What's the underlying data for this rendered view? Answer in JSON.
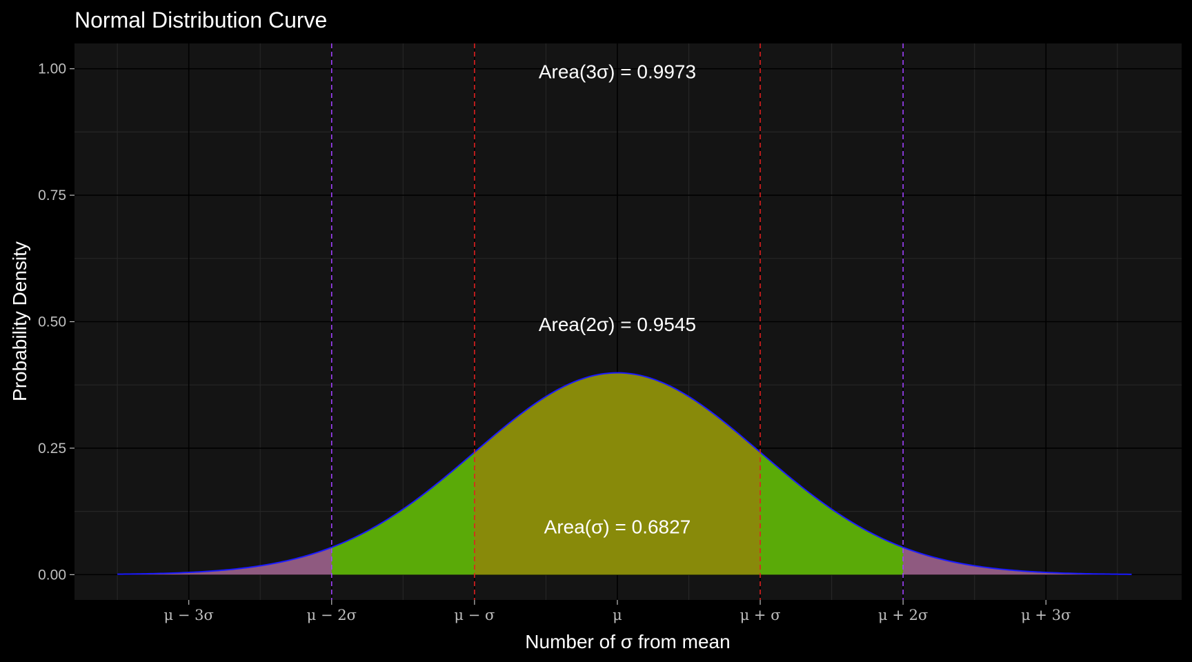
{
  "chart_data": {
    "type": "area",
    "title": "Normal Distribution Curve",
    "xlabel": "Number of σ from mean",
    "ylabel": "Probability Density",
    "xlim": [
      -3.8,
      3.95
    ],
    "ylim": [
      -0.05,
      1.05
    ],
    "y_ticks": [
      0,
      0.25,
      0.5,
      0.75,
      1
    ],
    "y_tick_labels": [
      "0.00",
      "0.25",
      "0.50",
      "0.75",
      "1.00"
    ],
    "x_ticks": [
      -3,
      -2,
      -1,
      0,
      1,
      2,
      3
    ],
    "x_tick_labels": [
      "μ − 3σ",
      "μ − 2σ",
      "μ − σ",
      "μ",
      "μ + σ",
      "μ + 2σ",
      "μ + 3σ"
    ],
    "curve": {
      "distribution": "standard normal density",
      "x_range": [
        -3.5,
        3.6
      ],
      "peak": {
        "x": 0,
        "y": 0.4
      },
      "color": "#1a1aff"
    },
    "regions": [
      {
        "name": "within 1σ",
        "from": -1,
        "to": 1,
        "color": "#888a0a"
      },
      {
        "name": "within 2σ",
        "from": -2,
        "to": 2,
        "color": "#5aaa08"
      },
      {
        "name": "beyond 2σ",
        "from": -3.5,
        "to": 3.6,
        "color": "#8f5a80"
      }
    ],
    "reference_lines": [
      {
        "x": -2,
        "color": "#a040ff",
        "style": "dashed"
      },
      {
        "x": -1,
        "color": "#e02020",
        "style": "dashed"
      },
      {
        "x": 1,
        "color": "#e02020",
        "style": "dashed"
      },
      {
        "x": 2,
        "color": "#a040ff",
        "style": "dashed"
      }
    ],
    "annotations": [
      {
        "text": "Area(3σ) = 0.9973",
        "x": 0,
        "y": 0.995
      },
      {
        "text": "Area(2σ) = 0.9545",
        "x": 0,
        "y": 0.495
      },
      {
        "text": "Area(σ) = 0.6827",
        "x": 0,
        "y": 0.095
      }
    ],
    "grid": true,
    "colors": {
      "panel": "#141414",
      "grid_major": "#000000",
      "grid_minor": "#262626"
    }
  }
}
